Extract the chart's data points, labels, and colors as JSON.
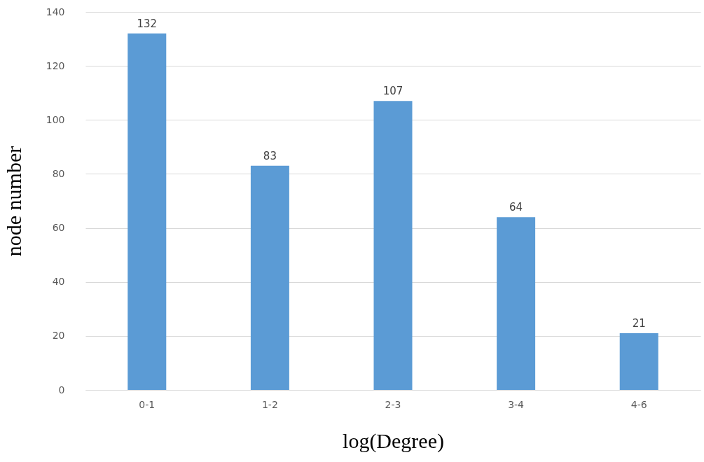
{
  "chart_data": {
    "type": "bar",
    "xlabel": "log(Degree)",
    "ylabel": "node number",
    "categories": [
      "0-1",
      "1-2",
      "2-3",
      "3-4",
      "4-6"
    ],
    "values": [
      132,
      83,
      107,
      64,
      21
    ],
    "color": "#5b9bd5",
    "ylim": [
      0,
      140
    ],
    "yticks": [
      0,
      20,
      40,
      60,
      80,
      100,
      120,
      140
    ],
    "grid": "y",
    "data_labels": true
  }
}
